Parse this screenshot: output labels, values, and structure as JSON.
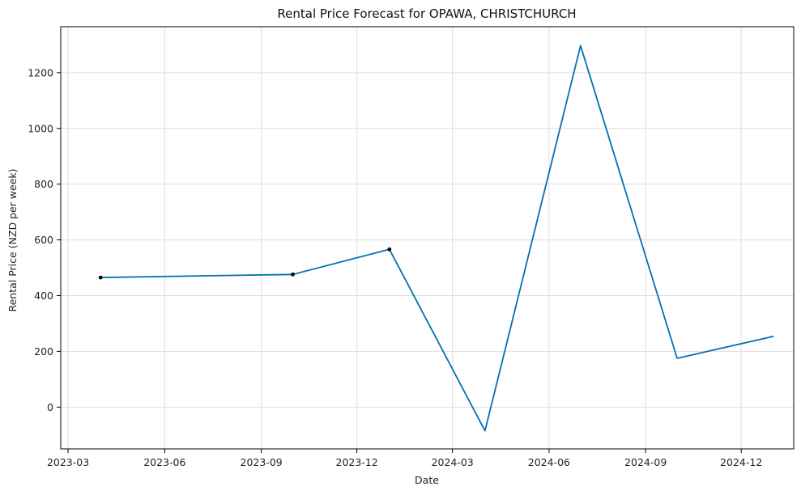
{
  "chart_data": {
    "type": "line",
    "title": "Rental Price Forecast for OPAWA, CHRISTCHURCH",
    "xlabel": "Date",
    "ylabel": "Rental Price (NZD per week)",
    "x_ticks": [
      "2023-03",
      "2023-06",
      "2023-09",
      "2023-12",
      "2024-03",
      "2024-06",
      "2024-09",
      "2024-12"
    ],
    "y_ticks": [
      0,
      200,
      400,
      600,
      800,
      1000,
      1200
    ],
    "xlim": [
      "2023-02-22",
      "2025-01-20"
    ],
    "ylim": [
      -150,
      1365
    ],
    "grid": true,
    "legend": "none",
    "series": [
      {
        "color": "#0072b2",
        "points": [
          {
            "x": "2023-04-01",
            "y": 465
          },
          {
            "x": "2023-10-01",
            "y": 476
          },
          {
            "x": "2024-01-01",
            "y": 566
          },
          {
            "x": "2024-04-01",
            "y": -85
          },
          {
            "x": "2024-07-01",
            "y": 1297
          },
          {
            "x": "2024-10-01",
            "y": 175
          },
          {
            "x": "2025-01-01",
            "y": 254
          }
        ]
      }
    ],
    "observed_points": [
      {
        "x": "2023-04-01",
        "y": 465
      },
      {
        "x": "2023-10-01",
        "y": 476
      },
      {
        "x": "2024-01-01",
        "y": 566
      }
    ],
    "observed_color": "#000000"
  }
}
